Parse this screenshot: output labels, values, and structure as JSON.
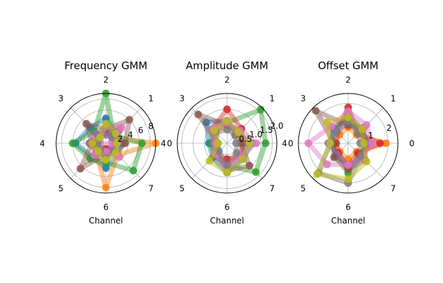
{
  "chart_data": [
    {
      "type": "radar",
      "title": "Frequency GMM",
      "xlabel": "Channel",
      "angle_labels": [
        "0",
        "1",
        "2",
        "3",
        "4",
        "5",
        "6",
        "7"
      ],
      "radial_ticks": [
        2,
        4,
        6,
        8
      ],
      "rlim": [
        0,
        9
      ],
      "series": [
        {
          "color": "#1f77b4",
          "values": [
            3.0,
            2.5,
            4.5,
            4.0,
            5.5,
            3.5,
            4.5,
            3.0
          ]
        },
        {
          "color": "#ff7f0e",
          "values": [
            9.0,
            1.5,
            3.0,
            2.0,
            3.0,
            2.5,
            8.0,
            3.0
          ]
        },
        {
          "color": "#2ca02c",
          "values": [
            6.5,
            2.0,
            9.0,
            3.0,
            6.0,
            4.0,
            3.5,
            7.0
          ]
        },
        {
          "color": "#d62728",
          "values": [
            1.5,
            3.0,
            2.0,
            1.5,
            2.0,
            2.5,
            1.0,
            2.0
          ]
        },
        {
          "color": "#9467bd",
          "values": [
            2.5,
            3.5,
            1.5,
            2.5,
            3.0,
            2.0,
            2.5,
            1.5
          ]
        },
        {
          "color": "#8c564b",
          "values": [
            3.5,
            6.0,
            2.5,
            5.0,
            2.5,
            6.5,
            2.0,
            2.5
          ]
        },
        {
          "color": "#e377c2",
          "values": [
            1.0,
            4.0,
            3.0,
            1.5,
            1.0,
            3.0,
            1.5,
            3.5
          ]
        },
        {
          "color": "#7f7f7f",
          "values": [
            2.0,
            1.5,
            3.5,
            2.0,
            1.5,
            1.5,
            3.0,
            2.0
          ]
        },
        {
          "color": "#bcbd22",
          "values": [
            2.0,
            2.5,
            3.5,
            1.5,
            2.5,
            2.0,
            3.0,
            2.5
          ]
        }
      ]
    },
    {
      "type": "radar",
      "title": "Amplitude GMM",
      "xlabel": "Channel",
      "angle_labels": [
        "0",
        "1",
        "2",
        "3",
        "4",
        "5",
        "6",
        "7"
      ],
      "radial_ticks": [
        0.5,
        1.0,
        1.5,
        2.0
      ],
      "radial_tick_labels": [
        "0.5",
        "1.0",
        "1.5",
        "2.0"
      ],
      "rlim": [
        0,
        2.2
      ],
      "series": [
        {
          "color": "#1f77b4",
          "values": [
            1.1,
            0.6,
            1.0,
            1.3,
            0.8,
            0.9,
            1.3,
            1.0
          ]
        },
        {
          "color": "#ff7f0e",
          "values": [
            0.9,
            0.5,
            0.8,
            0.7,
            0.6,
            0.8,
            0.9,
            0.8
          ]
        },
        {
          "color": "#2ca02c",
          "values": [
            1.7,
            2.1,
            0.9,
            0.9,
            0.7,
            0.8,
            1.0,
            1.8
          ]
        },
        {
          "color": "#d62728",
          "values": [
            0.7,
            0.9,
            1.5,
            0.9,
            0.5,
            0.7,
            0.7,
            0.8
          ]
        },
        {
          "color": "#9467bd",
          "values": [
            0.9,
            0.7,
            0.9,
            0.8,
            0.6,
            0.7,
            1.0,
            0.9
          ]
        },
        {
          "color": "#8c564b",
          "values": [
            0.6,
            0.8,
            0.8,
            1.8,
            0.4,
            0.6,
            1.2,
            1.4
          ]
        },
        {
          "color": "#e377c2",
          "values": [
            1.3,
            0.8,
            0.9,
            0.9,
            0.5,
            0.7,
            1.1,
            0.8
          ]
        },
        {
          "color": "#7f7f7f",
          "values": [
            0.4,
            0.5,
            0.6,
            0.7,
            0.4,
            0.5,
            1.0,
            0.6
          ]
        },
        {
          "color": "#bcbd22",
          "values": [
            1.0,
            0.7,
            1.0,
            0.8,
            0.4,
            1.1,
            1.3,
            1.0
          ]
        }
      ]
    },
    {
      "type": "radar",
      "title": "Offset GMM",
      "xlabel": "Channel",
      "angle_labels": [
        "0",
        "1",
        "2",
        "3",
        "4",
        "5",
        "6",
        "7"
      ],
      "radial_ticks": [
        1,
        2
      ],
      "rlim": [
        0,
        2.5
      ],
      "series": [
        {
          "color": "#1f77b4",
          "values": [
            0.9,
            1.0,
            1.4,
            1.0,
            0.9,
            0.8,
            1.2,
            0.9
          ]
        },
        {
          "color": "#ff7f0e",
          "values": [
            1.9,
            0.6,
            0.8,
            0.6,
            0.7,
            0.6,
            0.8,
            0.6
          ]
        },
        {
          "color": "#2ca02c",
          "values": [
            1.1,
            0.8,
            1.2,
            1.1,
            0.8,
            0.9,
            1.5,
            0.8
          ]
        },
        {
          "color": "#d62728",
          "values": [
            1.6,
            0.7,
            1.8,
            0.8,
            0.6,
            0.7,
            1.2,
            0.7
          ]
        },
        {
          "color": "#9467bd",
          "values": [
            1.0,
            0.9,
            1.0,
            0.9,
            1.0,
            0.8,
            1.1,
            1.0
          ]
        },
        {
          "color": "#8c564b",
          "values": [
            0.8,
            1.1,
            0.9,
            2.3,
            0.7,
            1.0,
            1.3,
            1.2
          ]
        },
        {
          "color": "#e377c2",
          "values": [
            1.2,
            1.3,
            1.6,
            1.2,
            2.0,
            1.5,
            1.1,
            1.0
          ]
        },
        {
          "color": "#7f7f7f",
          "values": [
            0.6,
            0.7,
            1.1,
            0.8,
            0.9,
            2.1,
            2.0,
            0.9
          ]
        },
        {
          "color": "#bcbd22",
          "values": [
            0.8,
            1.0,
            1.3,
            1.5,
            0.9,
            2.2,
            1.8,
            1.3
          ]
        }
      ]
    }
  ]
}
